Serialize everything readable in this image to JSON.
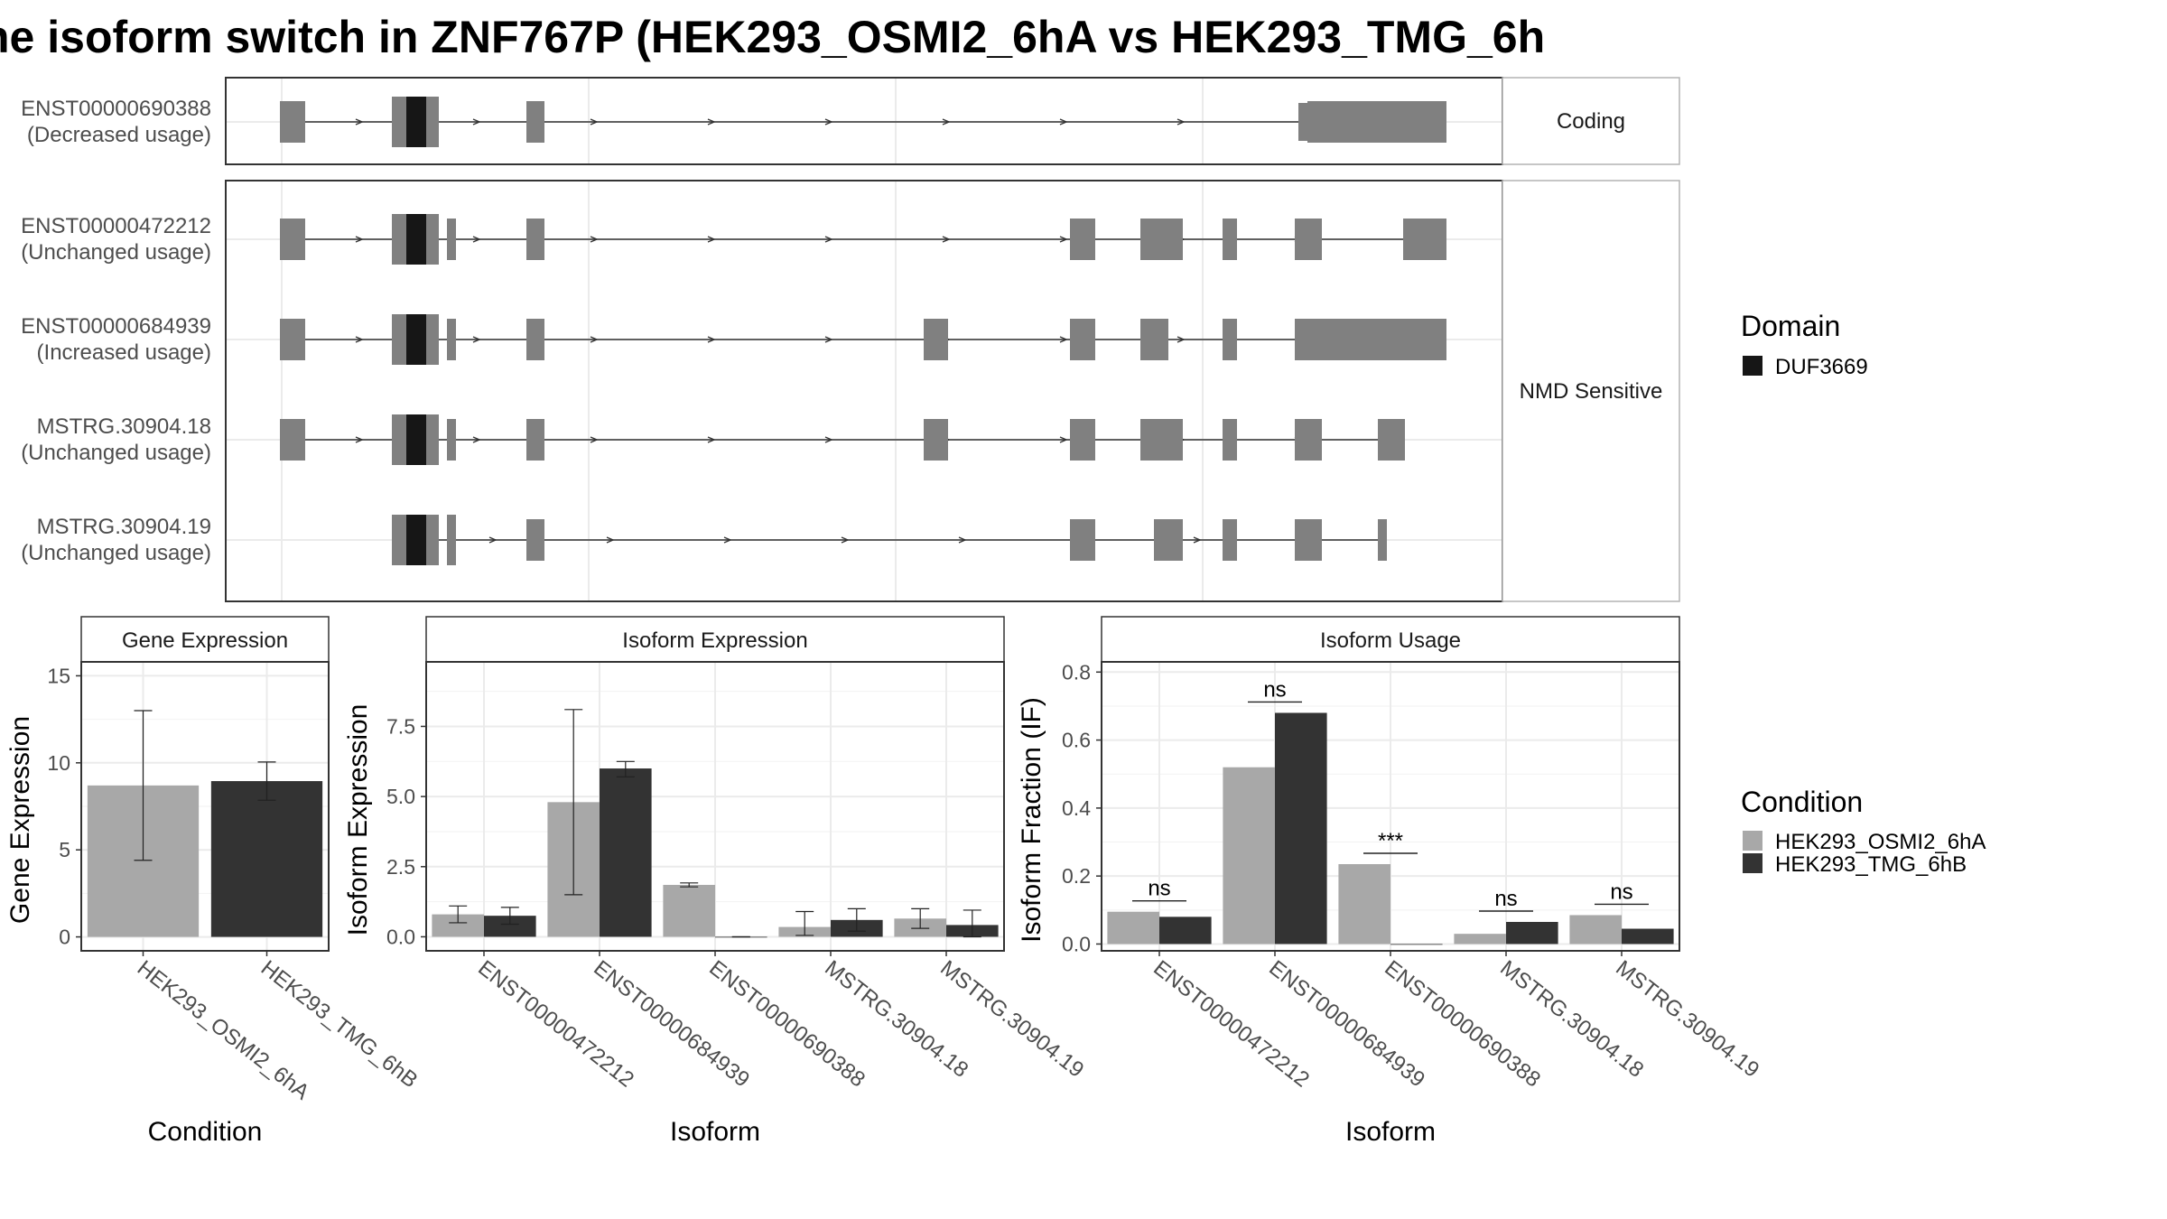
{
  "title": "he isoform switch in ZNF767P (HEK293_OSMI2_6hA vs HEK293_TMG_6h",
  "structure": {
    "facets": [
      "Coding",
      "NMD Sensitive"
    ],
    "isoforms": [
      {
        "id": "ENST00000690388",
        "usage": "(Decreased usage)",
        "facet": "Coding"
      },
      {
        "id": "ENST00000472212",
        "usage": "(Unchanged usage)",
        "facet": "NMD Sensitive"
      },
      {
        "id": "ENST00000684939",
        "usage": "(Increased usage)",
        "facet": "NMD Sensitive"
      },
      {
        "id": "MSTRG.30904.18",
        "usage": "(Unchanged usage)",
        "facet": "NMD Sensitive"
      },
      {
        "id": "MSTRG.30904.19",
        "usage": "(Unchanged usage)",
        "facet": "NMD Sensitive"
      }
    ],
    "domain_legend": {
      "title": "Domain",
      "items": [
        {
          "name": "DUF3669",
          "color": "#161616"
        }
      ]
    }
  },
  "chart_data": [
    {
      "type": "bar",
      "title": "Gene Expression",
      "xlabel": "Condition",
      "ylabel": "Gene Expression",
      "categories": [
        "HEK293_OSMI2_6hA",
        "HEK293_TMG_6hB"
      ],
      "values": [
        8.7,
        8.95
      ],
      "error": [
        [
          4.4,
          13.0
        ],
        [
          7.85,
          10.05
        ]
      ],
      "ylim": [
        -0.8,
        15.8
      ],
      "yticks": [
        0,
        5,
        10,
        15
      ],
      "ytick_labels": [
        "0",
        "5",
        "10",
        "15"
      ]
    },
    {
      "type": "bar",
      "title": "Isoform Expression",
      "xlabel": "Isoform",
      "ylabel": "Isoform Expression",
      "categories": [
        "ENST00000472212",
        "ENST00000684939",
        "ENST00000690388",
        "MSTRG.30904.18",
        "MSTRG.30904.19"
      ],
      "series": [
        {
          "name": "HEK293_OSMI2_6hA",
          "values": [
            0.8,
            4.8,
            1.85,
            0.35,
            0.65
          ],
          "error": [
            [
              0.5,
              1.1
            ],
            [
              1.5,
              8.1
            ],
            [
              1.78,
              1.92
            ],
            [
              0.05,
              0.9
            ],
            [
              0.3,
              1.0
            ]
          ]
        },
        {
          "name": "HEK293_TMG_6hB",
          "values": [
            0.75,
            6.0,
            0.0,
            0.6,
            0.42
          ],
          "error": [
            [
              0.45,
              1.05
            ],
            [
              5.7,
              6.25
            ],
            [
              0.0,
              0.0
            ],
            [
              0.2,
              1.0
            ],
            [
              0.0,
              0.95
            ]
          ]
        }
      ],
      "ylim": [
        -0.5,
        9.8
      ],
      "yticks": [
        0,
        2.5,
        5,
        7.5
      ],
      "ytick_labels": [
        "0.0",
        "2.5",
        "5.0",
        "7.5"
      ]
    },
    {
      "type": "bar",
      "title": "Isoform Usage",
      "xlabel": "Isoform",
      "ylabel": "Isoform Fraction (IF)",
      "categories": [
        "ENST00000472212",
        "ENST00000684939",
        "ENST00000690388",
        "MSTRG.30904.18",
        "MSTRG.30904.19"
      ],
      "series": [
        {
          "name": "HEK293_OSMI2_6hA",
          "values": [
            0.095,
            0.52,
            0.235,
            0.03,
            0.085
          ]
        },
        {
          "name": "HEK293_TMG_6hB",
          "values": [
            0.08,
            0.68,
            0.0,
            0.065,
            0.045
          ]
        }
      ],
      "significance": [
        "ns",
        "ns",
        "***",
        "ns",
        "ns"
      ],
      "ylim": [
        -0.02,
        0.83
      ],
      "yticks": [
        0,
        0.2,
        0.4,
        0.6,
        0.8
      ],
      "ytick_labels": [
        "0.0",
        "0.2",
        "0.4",
        "0.6",
        "0.8"
      ]
    }
  ],
  "condition_legend": {
    "title": "Condition",
    "items": [
      {
        "name": "HEK293_OSMI2_6hA",
        "color": "#a8a8a8"
      },
      {
        "name": "HEK293_TMG_6hB",
        "color": "#333333"
      }
    ]
  },
  "colors": {
    "exon": "#808080",
    "domain": "#161616",
    "grid": "#ebebeb",
    "strip": "#ffffff",
    "border": "#333333"
  }
}
